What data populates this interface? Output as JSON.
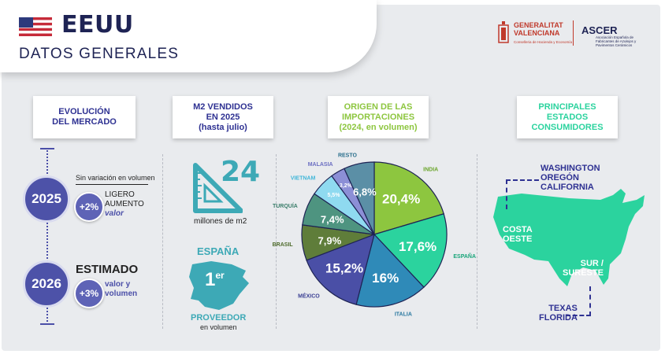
{
  "header": {
    "country": "EEUU",
    "subtitle": "DATOS GENERALES",
    "logos": {
      "gva_line1": "GENERALITAT",
      "gva_line2": "VALENCIANA",
      "gva_sub": "Conselleria de Hacienda y Economía",
      "ascer_name": "ASCER",
      "ascer_sub": "Asociación Española de Fabricantes de Azulejos y Pavimentos Cerámicos"
    }
  },
  "sections": {
    "mercado": {
      "title1": "EVOLUCIÓN",
      "title2": "DEL MERCADO"
    },
    "m2": {
      "title1": "M2 VENDIDOS",
      "title2": "EN 2025",
      "title3": "(hasta julio)"
    },
    "origen": {
      "title1": "ORIGEN DE LAS",
      "title2": "IMPORTACIONES",
      "title3": "(2024, en volumen)"
    },
    "estados": {
      "title1": "PRINCIPALES",
      "title2": "ESTADOS",
      "title3": "CONSUMIDORES"
    }
  },
  "mercado": {
    "y2025": "2025",
    "y2025_note": "Sin variación en volumen",
    "y2025_pct": "+2%",
    "y2025_l1": "LIGERO",
    "y2025_l2": "AUMENTO",
    "y2025_valor": "valor",
    "y2026": "2026",
    "y2026_label": "ESTIMADO",
    "y2026_pct": "+3%",
    "y2026_l1": "valor y",
    "y2026_l2": "volumen"
  },
  "m2": {
    "value": "24",
    "unit": "millones de m2",
    "country": "ESPAÑA",
    "rank": "1",
    "rank_sup": "er",
    "proveedor": "PROVEEDOR",
    "en_volumen": "en volumen"
  },
  "chart_data": {
    "type": "pie",
    "slices": [
      {
        "name": "INDIA",
        "value": 20.4,
        "label": "20,4%",
        "color": "#8dc63f",
        "label_color": "#6aa52a"
      },
      {
        "name": "ESPAÑA",
        "value": 17.6,
        "label": "17,6%",
        "color": "#2bd39e",
        "label_color": "#1aa57a"
      },
      {
        "name": "ITALIA",
        "value": 16,
        "label": "16%",
        "color": "#2f8ab8",
        "label_color": "#2a78a0"
      },
      {
        "name": "MÉXICO",
        "value": 15.2,
        "label": "15,2%",
        "color": "#4a4fa6",
        "label_color": "#3a3f93"
      },
      {
        "name": "BRASIL",
        "value": 7.9,
        "label": "7,9%",
        "color": "#5f7d3a",
        "label_color": "#4d6a2a"
      },
      {
        "name": "TURQUÍA",
        "value": 7.4,
        "label": "7,4%",
        "color": "#4e9480",
        "label_color": "#3a7d6a"
      },
      {
        "name": "VIETNAM",
        "value": 5.5,
        "label": "5,5%",
        "color": "#8fdaf0",
        "label_color": "#3fb6d8"
      },
      {
        "name": "MALASIA",
        "value": 3.2,
        "label": "3,2%",
        "color": "#8c8fd6",
        "label_color": "#6b6ec2"
      },
      {
        "name": "RESTO",
        "value": 6.8,
        "label": "6,8%",
        "color": "#5b8fa6",
        "label_color": "#2a6f8c"
      }
    ]
  },
  "estados": {
    "wash1": "WASHINGTON",
    "wash2": "OREGÓN",
    "wash3": "CALIFORNIA",
    "costa1": "COSTA",
    "costa2": "OESTE",
    "sur1": "SUR /",
    "sur2": "SURESTE",
    "texas1": "TEXAS",
    "texas2": "FLORIDA",
    "map_color": "#2bd39e"
  }
}
